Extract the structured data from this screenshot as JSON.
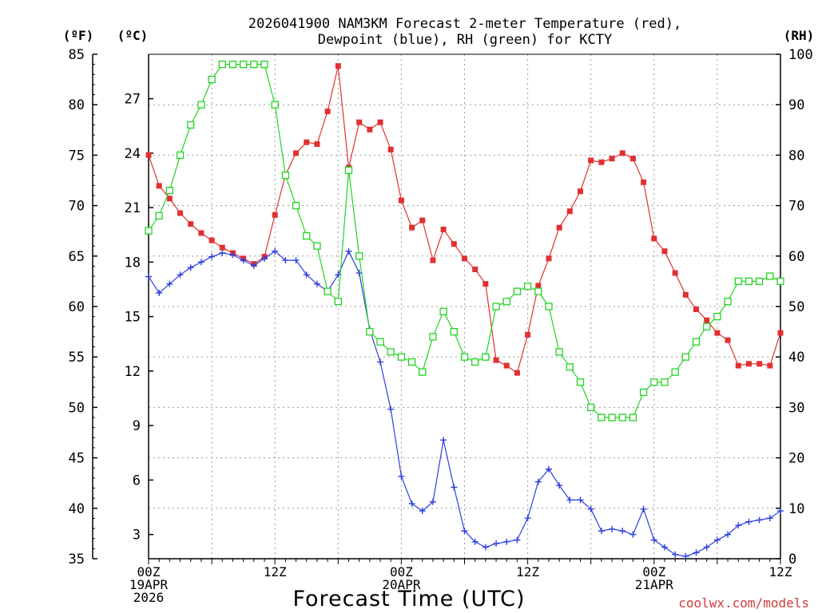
{
  "chart_data": {
    "type": "line",
    "title": [
      "2026041900 NAM3KM Forecast 2-meter Temperature (red),",
      "Dewpoint (blue), RH (green) for KCTY"
    ],
    "xlabel": "Forecast Time (UTC)",
    "credit": "coolwx.com/models",
    "units": {
      "fahrenheit": "(ºF)",
      "celsius": "(ºC)",
      "rh": "(RH)"
    },
    "grid": true,
    "x": [
      0,
      1,
      2,
      3,
      4,
      5,
      6,
      7,
      8,
      9,
      10,
      11,
      12,
      13,
      14,
      15,
      16,
      17,
      18,
      19,
      20,
      21,
      22,
      23,
      24,
      25,
      26,
      27,
      28,
      29,
      30,
      31,
      32,
      33,
      34,
      35,
      36,
      37,
      38,
      39,
      40,
      41,
      42,
      43,
      44,
      45,
      46,
      47,
      48,
      49,
      50,
      51,
      52,
      53,
      54,
      55,
      56,
      57,
      58,
      59,
      60
    ],
    "xlim": [
      0,
      60
    ],
    "xticks": [
      {
        "hour": 0,
        "lines": [
          "00Z",
          "19APR",
          "2026"
        ]
      },
      {
        "hour": 12,
        "lines": [
          "12Z"
        ]
      },
      {
        "hour": 24,
        "lines": [
          "00Z",
          "20APR"
        ]
      },
      {
        "hour": 36,
        "lines": [
          "12Z"
        ]
      },
      {
        "hour": 48,
        "lines": [
          "00Z",
          "21APR"
        ]
      },
      {
        "hour": 60,
        "lines": [
          "12Z"
        ]
      }
    ],
    "left_axis_f": {
      "label": "(ºF)",
      "ylim": [
        35,
        85
      ],
      "ticks": [
        35,
        40,
        45,
        50,
        55,
        60,
        65,
        70,
        75,
        80,
        85
      ]
    },
    "left_axis_c": {
      "label": "(ºC)",
      "ylim": [
        1.667,
        29.444
      ],
      "ticks": [
        3,
        6,
        9,
        12,
        15,
        18,
        21,
        24,
        27
      ]
    },
    "right_axis": {
      "label": "(RH)",
      "ylim": [
        0,
        100
      ],
      "ticks": [
        0,
        10,
        20,
        30,
        40,
        50,
        60,
        70,
        80,
        90,
        100
      ]
    },
    "series": [
      {
        "name": "2-meter Temperature",
        "units": "°C",
        "color": "#e23030",
        "marker": "filled-square",
        "values": [
          23.9,
          22.2,
          21.5,
          20.7,
          20.1,
          19.6,
          19.2,
          18.8,
          18.5,
          18.2,
          17.9,
          18.3,
          20.6,
          22.8,
          24.0,
          24.6,
          24.5,
          26.3,
          28.8,
          23.2,
          25.7,
          25.3,
          25.7,
          24.2,
          21.4,
          19.9,
          20.3,
          18.1,
          19.8,
          19.0,
          18.2,
          17.6,
          16.8,
          12.6,
          12.3,
          11.9,
          14.0,
          16.7,
          18.2,
          19.9,
          20.8,
          21.9,
          23.6,
          23.5,
          23.7,
          24.0,
          23.7,
          22.4,
          19.3,
          18.6,
          17.4,
          16.2,
          15.4,
          14.8,
          14.1,
          13.7,
          12.3,
          12.4,
          12.4,
          12.3,
          14.1
        ]
      },
      {
        "name": "Dewpoint",
        "units": "°C",
        "color": "#2d3fe0",
        "marker": "plus",
        "values": [
          17.2,
          16.3,
          16.8,
          17.3,
          17.7,
          18.0,
          18.3,
          18.5,
          18.4,
          18.1,
          17.8,
          18.2,
          18.6,
          18.1,
          18.1,
          17.3,
          16.8,
          16.4,
          17.3,
          18.6,
          17.4,
          14.3,
          12.5,
          9.9,
          6.2,
          4.7,
          4.3,
          4.8,
          8.2,
          5.6,
          3.2,
          2.6,
          2.3,
          2.5,
          2.6,
          2.7,
          3.9,
          5.9,
          6.6,
          5.7,
          4.9,
          4.9,
          4.4,
          3.2,
          3.3,
          3.2,
          3.0,
          4.4,
          2.7,
          2.3,
          1.9,
          1.8,
          2.0,
          2.3,
          2.7,
          3.0,
          3.5,
          3.7,
          3.8,
          3.9,
          4.3
        ]
      },
      {
        "name": "RH",
        "units": "%",
        "color": "#22d422",
        "marker": "open-square",
        "values": [
          65,
          68,
          73,
          80,
          86,
          90,
          95,
          98,
          98,
          98,
          98,
          98,
          90,
          76,
          70,
          64,
          62,
          53,
          51,
          77,
          60,
          45,
          43,
          41,
          40,
          39,
          37,
          44,
          49,
          45,
          40,
          39,
          40,
          50,
          51,
          53,
          54,
          53,
          50,
          41,
          38,
          35,
          30,
          28,
          28,
          28,
          28,
          33,
          35,
          35,
          37,
          40,
          43,
          46,
          48,
          51,
          55,
          55,
          55,
          56,
          55
        ]
      }
    ]
  }
}
